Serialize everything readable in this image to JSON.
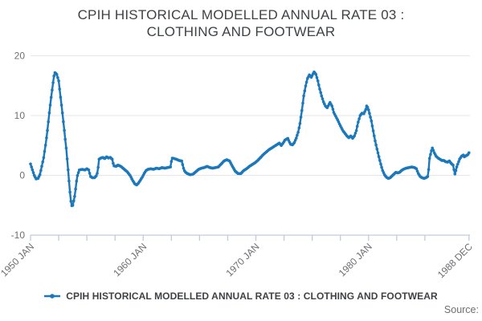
{
  "title": {
    "line1": "CPIH HISTORICAL MODELLED ANNUAL RATE 03 :",
    "line2": "CLOTHING AND FOOTWEAR"
  },
  "legend": {
    "label": "CPIH HISTORICAL MODELLED ANNUAL RATE 03 : CLOTHING AND FOOTWEAR"
  },
  "source_label": "Source:",
  "colors": {
    "series": "#1b78ba",
    "grid": "#e4e4e4",
    "axis": "#c2cbda",
    "title_text": "#3f4245",
    "label_text": "#6e6e73"
  },
  "chart_data": {
    "type": "line",
    "title": "CPIH HISTORICAL MODELLED ANNUAL RATE 03 : CLOTHING AND FOOTWEAR",
    "frequency": "monthly",
    "legend_position": "bottom",
    "grid": "horizontal",
    "x_axis": {
      "min_year": 1950.0,
      "max_year": 1989.0,
      "tick_interval_years": 2.5,
      "labels": [
        {
          "year": 1950.0,
          "label": "1950 JAN"
        },
        {
          "year": 1960.0,
          "label": "1960 JAN"
        },
        {
          "year": 1970.0,
          "label": "1970 JAN"
        },
        {
          "year": 1980.0,
          "label": "1980 JAN"
        },
        {
          "year": 1988.917,
          "label": "1988 DEC"
        }
      ]
    },
    "y_axis": {
      "min": -10,
      "max": 20,
      "ticks": [
        20,
        10,
        0,
        -10
      ]
    },
    "series": [
      {
        "name": "CPIH HISTORICAL MODELLED ANNUAL RATE 03 : CLOTHING AND FOOTWEAR",
        "points_year_value": [
          [
            1950.0,
            1.9
          ],
          [
            1950.17,
            0.9
          ],
          [
            1950.33,
            0.0
          ],
          [
            1950.5,
            -0.6
          ],
          [
            1950.67,
            -0.5
          ],
          [
            1950.83,
            0.1
          ],
          [
            1951.0,
            1.5
          ],
          [
            1951.17,
            3.0
          ],
          [
            1951.33,
            5.0
          ],
          [
            1951.5,
            7.5
          ],
          [
            1951.67,
            10.5
          ],
          [
            1951.83,
            13.0
          ],
          [
            1952.0,
            15.5
          ],
          [
            1952.08,
            16.6
          ],
          [
            1952.17,
            17.2
          ],
          [
            1952.33,
            16.9
          ],
          [
            1952.5,
            15.8
          ],
          [
            1952.67,
            13.0
          ],
          [
            1952.83,
            10.5
          ],
          [
            1953.0,
            7.5
          ],
          [
            1953.17,
            4.5
          ],
          [
            1953.33,
            1.0
          ],
          [
            1953.5,
            -2.8
          ],
          [
            1953.58,
            -4.3
          ],
          [
            1953.67,
            -5.1
          ],
          [
            1953.75,
            -5.0
          ],
          [
            1953.83,
            -4.3
          ],
          [
            1953.92,
            -3.5
          ],
          [
            1954.0,
            -2.3
          ],
          [
            1954.08,
            -1.0
          ],
          [
            1954.17,
            0.0
          ],
          [
            1954.33,
            0.9
          ],
          [
            1954.58,
            1.0
          ],
          [
            1954.83,
            0.9
          ],
          [
            1955.0,
            1.1
          ],
          [
            1955.17,
            0.9
          ],
          [
            1955.33,
            -0.2
          ],
          [
            1955.5,
            -0.4
          ],
          [
            1955.67,
            -0.4
          ],
          [
            1955.83,
            -0.1
          ],
          [
            1955.95,
            0.5
          ],
          [
            1956.08,
            2.7
          ],
          [
            1956.25,
            2.9
          ],
          [
            1956.42,
            3.0
          ],
          [
            1956.58,
            2.8
          ],
          [
            1956.75,
            3.1
          ],
          [
            1956.92,
            2.9
          ],
          [
            1957.08,
            3.0
          ],
          [
            1957.25,
            2.7
          ],
          [
            1957.38,
            1.6
          ],
          [
            1957.58,
            1.5
          ],
          [
            1957.75,
            1.7
          ],
          [
            1957.92,
            1.6
          ],
          [
            1958.08,
            1.4
          ],
          [
            1958.33,
            1.0
          ],
          [
            1958.58,
            0.6
          ],
          [
            1958.83,
            0.0
          ],
          [
            1959.08,
            -0.9
          ],
          [
            1959.25,
            -1.4
          ],
          [
            1959.42,
            -1.6
          ],
          [
            1959.58,
            -1.3
          ],
          [
            1959.75,
            -0.8
          ],
          [
            1959.92,
            -0.3
          ],
          [
            1960.08,
            0.3
          ],
          [
            1960.25,
            0.8
          ],
          [
            1960.42,
            1.0
          ],
          [
            1960.67,
            1.1
          ],
          [
            1960.92,
            1.0
          ],
          [
            1961.17,
            1.2
          ],
          [
            1961.42,
            1.1
          ],
          [
            1961.67,
            1.3
          ],
          [
            1961.92,
            1.2
          ],
          [
            1962.17,
            1.3
          ],
          [
            1962.42,
            1.4
          ],
          [
            1962.55,
            2.9
          ],
          [
            1962.75,
            2.8
          ],
          [
            1962.95,
            2.7
          ],
          [
            1963.17,
            2.5
          ],
          [
            1963.42,
            2.4
          ],
          [
            1963.58,
            1.2
          ],
          [
            1963.7,
            0.6
          ],
          [
            1963.92,
            0.3
          ],
          [
            1964.17,
            0.1
          ],
          [
            1964.42,
            0.2
          ],
          [
            1964.67,
            0.6
          ],
          [
            1964.92,
            1.0
          ],
          [
            1965.17,
            1.2
          ],
          [
            1965.42,
            1.3
          ],
          [
            1965.67,
            1.5
          ],
          [
            1965.92,
            1.3
          ],
          [
            1966.17,
            1.2
          ],
          [
            1966.42,
            1.3
          ],
          [
            1966.67,
            1.4
          ],
          [
            1966.92,
            1.9
          ],
          [
            1967.17,
            2.4
          ],
          [
            1967.42,
            2.6
          ],
          [
            1967.67,
            2.4
          ],
          [
            1967.92,
            1.5
          ],
          [
            1968.17,
            0.7
          ],
          [
            1968.42,
            0.3
          ],
          [
            1968.67,
            0.3
          ],
          [
            1968.92,
            0.8
          ],
          [
            1969.17,
            1.1
          ],
          [
            1969.42,
            1.5
          ],
          [
            1969.67,
            1.8
          ],
          [
            1969.92,
            2.1
          ],
          [
            1970.17,
            2.5
          ],
          [
            1970.42,
            3.0
          ],
          [
            1970.67,
            3.5
          ],
          [
            1970.92,
            3.9
          ],
          [
            1971.17,
            4.3
          ],
          [
            1971.42,
            4.6
          ],
          [
            1971.67,
            4.9
          ],
          [
            1971.92,
            5.2
          ],
          [
            1972.08,
            5.4
          ],
          [
            1972.25,
            5.0
          ],
          [
            1972.42,
            5.4
          ],
          [
            1972.58,
            5.9
          ],
          [
            1972.83,
            6.2
          ],
          [
            1973.0,
            5.5
          ],
          [
            1973.08,
            5.2
          ],
          [
            1973.25,
            5.1
          ],
          [
            1973.42,
            5.5
          ],
          [
            1973.58,
            6.2
          ],
          [
            1973.75,
            7.2
          ],
          [
            1973.92,
            8.7
          ],
          [
            1974.08,
            10.8
          ],
          [
            1974.25,
            13.3
          ],
          [
            1974.42,
            15.0
          ],
          [
            1974.58,
            16.2
          ],
          [
            1974.75,
            16.8
          ],
          [
            1974.92,
            16.4
          ],
          [
            1975.08,
            17.0
          ],
          [
            1975.17,
            17.3
          ],
          [
            1975.33,
            16.9
          ],
          [
            1975.5,
            15.8
          ],
          [
            1975.67,
            14.4
          ],
          [
            1975.83,
            13.3
          ],
          [
            1976.0,
            12.3
          ],
          [
            1976.17,
            11.6
          ],
          [
            1976.33,
            11.3
          ],
          [
            1976.5,
            11.9
          ],
          [
            1976.58,
            12.2
          ],
          [
            1976.75,
            11.6
          ],
          [
            1976.92,
            10.5
          ],
          [
            1977.08,
            9.9
          ],
          [
            1977.25,
            9.3
          ],
          [
            1977.42,
            8.6
          ],
          [
            1977.58,
            8.0
          ],
          [
            1977.75,
            7.4
          ],
          [
            1977.92,
            7.0
          ],
          [
            1978.08,
            6.6
          ],
          [
            1978.25,
            6.3
          ],
          [
            1978.42,
            6.6
          ],
          [
            1978.58,
            6.2
          ],
          [
            1978.75,
            6.6
          ],
          [
            1978.92,
            7.5
          ],
          [
            1979.08,
            8.9
          ],
          [
            1979.25,
            10.0
          ],
          [
            1979.42,
            10.4
          ],
          [
            1979.58,
            10.3
          ],
          [
            1979.75,
            11.0
          ],
          [
            1979.83,
            11.6
          ],
          [
            1979.95,
            11.3
          ],
          [
            1980.08,
            10.4
          ],
          [
            1980.25,
            9.1
          ],
          [
            1980.42,
            7.4
          ],
          [
            1980.58,
            5.8
          ],
          [
            1980.75,
            4.4
          ],
          [
            1980.92,
            3.1
          ],
          [
            1981.08,
            1.9
          ],
          [
            1981.25,
            0.8
          ],
          [
            1981.42,
            0.1
          ],
          [
            1981.58,
            -0.3
          ],
          [
            1981.75,
            -0.5
          ],
          [
            1981.92,
            -0.4
          ],
          [
            1982.08,
            -0.1
          ],
          [
            1982.25,
            0.2
          ],
          [
            1982.42,
            0.5
          ],
          [
            1982.58,
            0.4
          ],
          [
            1982.75,
            0.5
          ],
          [
            1982.92,
            0.8
          ],
          [
            1983.08,
            1.0
          ],
          [
            1983.33,
            1.2
          ],
          [
            1983.58,
            1.3
          ],
          [
            1983.83,
            1.4
          ],
          [
            1984.08,
            1.3
          ],
          [
            1984.25,
            1.1
          ],
          [
            1984.42,
            0.3
          ],
          [
            1984.58,
            -0.2
          ],
          [
            1984.75,
            -0.4
          ],
          [
            1984.92,
            -0.5
          ],
          [
            1985.08,
            -0.4
          ],
          [
            1985.25,
            -0.2
          ],
          [
            1985.33,
            0.9
          ],
          [
            1985.42,
            2.9
          ],
          [
            1985.58,
            4.1
          ],
          [
            1985.67,
            4.6
          ],
          [
            1985.83,
            3.8
          ],
          [
            1986.0,
            3.2
          ],
          [
            1986.17,
            2.9
          ],
          [
            1986.33,
            2.7
          ],
          [
            1986.5,
            2.5
          ],
          [
            1986.67,
            2.5
          ],
          [
            1986.83,
            2.3
          ],
          [
            1987.0,
            2.2
          ],
          [
            1987.17,
            2.4
          ],
          [
            1987.33,
            2.0
          ],
          [
            1987.5,
            1.7
          ],
          [
            1987.58,
            1.0
          ],
          [
            1987.67,
            0.2
          ],
          [
            1987.75,
            0.8
          ],
          [
            1987.83,
            1.4
          ],
          [
            1987.92,
            1.9
          ],
          [
            1988.08,
            2.7
          ],
          [
            1988.25,
            3.2
          ],
          [
            1988.42,
            3.4
          ],
          [
            1988.5,
            3.1
          ],
          [
            1988.58,
            3.2
          ],
          [
            1988.75,
            3.4
          ],
          [
            1988.83,
            3.5
          ],
          [
            1988.92,
            3.8
          ]
        ]
      }
    ]
  }
}
